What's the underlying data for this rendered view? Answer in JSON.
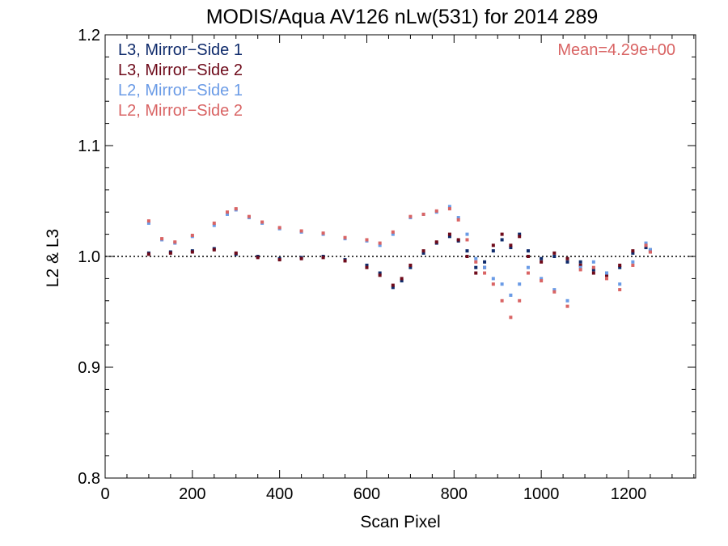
{
  "chart_data": {
    "type": "scatter",
    "title": "MODIS/Aqua AV126 nLw(531) for 2014 289",
    "xlabel": "Scan Pixel",
    "ylabel": "L2 & L3",
    "xlim": [
      0,
      1354
    ],
    "ylim": [
      0.8,
      1.2
    ],
    "x_ticks_major": [
      0,
      200,
      400,
      600,
      800,
      1000,
      1200
    ],
    "x_tick_labels": [
      "0",
      "200",
      "400",
      "600",
      "800",
      "1000",
      "1200"
    ],
    "y_ticks_major": [
      0.8,
      0.9,
      1.0,
      1.1,
      1.2
    ],
    "y_tick_labels": [
      "0.8",
      "0.9",
      "1.0",
      "1.1",
      "1.2"
    ],
    "reference_line": 1.0,
    "annotation": "Mean=4.29e+00",
    "annotation_color": "#d96464",
    "legend_position": "top-left",
    "series": [
      {
        "name": "L3, Mirror−Side 1",
        "color": "#0f2b6b",
        "x": [
          100,
          150,
          200,
          250,
          300,
          350,
          400,
          450,
          500,
          550,
          600,
          630,
          660,
          680,
          700,
          730,
          760,
          790,
          810,
          830,
          850,
          870,
          890,
          910,
          930,
          950,
          970,
          1000,
          1030,
          1060,
          1090,
          1120,
          1150,
          1180,
          1210,
          1240,
          1250
        ],
        "y": [
          1.003,
          1.004,
          1.005,
          1.007,
          1.002,
          1.0,
          0.998,
          0.999,
          1.0,
          0.997,
          0.992,
          0.985,
          0.972,
          0.978,
          0.99,
          1.003,
          1.012,
          1.018,
          1.014,
          1.005,
          0.99,
          0.995,
          1.005,
          1.015,
          1.008,
          1.02,
          1.005,
          0.998,
          1.0,
          0.995,
          0.995,
          0.988,
          0.985,
          0.99,
          1.003,
          1.008,
          1.006
        ]
      },
      {
        "name": "L3, Mirror−Side 2",
        "color": "#6e0a1a",
        "x": [
          100,
          150,
          200,
          250,
          300,
          350,
          400,
          450,
          500,
          550,
          600,
          630,
          660,
          680,
          700,
          730,
          760,
          790,
          810,
          830,
          850,
          870,
          890,
          910,
          930,
          950,
          970,
          1000,
          1030,
          1060,
          1090,
          1120,
          1150,
          1180,
          1210,
          1240,
          1250
        ],
        "y": [
          1.002,
          1.003,
          1.004,
          1.006,
          1.003,
          0.999,
          0.997,
          0.998,
          0.999,
          0.996,
          0.99,
          0.983,
          0.974,
          0.98,
          0.992,
          1.005,
          1.013,
          1.02,
          1.015,
          1.0,
          0.985,
          0.99,
          1.01,
          1.02,
          1.01,
          1.018,
          1.0,
          0.995,
          1.003,
          0.998,
          0.992,
          0.985,
          0.983,
          0.992,
          1.005,
          1.01,
          1.004
        ]
      },
      {
        "name": "L2, Mirror−Side 1",
        "color": "#6a9be6",
        "x": [
          100,
          130,
          160,
          200,
          250,
          280,
          300,
          330,
          360,
          400,
          450,
          500,
          550,
          600,
          630,
          660,
          700,
          730,
          760,
          790,
          810,
          830,
          850,
          870,
          890,
          910,
          930,
          950,
          970,
          1000,
          1030,
          1060,
          1090,
          1120,
          1150,
          1180,
          1210,
          1240,
          1250
        ],
        "y": [
          1.03,
          1.015,
          1.012,
          1.018,
          1.028,
          1.038,
          1.042,
          1.035,
          1.03,
          1.025,
          1.022,
          1.02,
          1.016,
          1.014,
          1.01,
          1.02,
          1.035,
          1.038,
          1.04,
          1.045,
          1.035,
          1.02,
          0.998,
          0.99,
          0.98,
          0.975,
          0.965,
          0.975,
          0.99,
          0.98,
          0.97,
          0.96,
          0.99,
          0.995,
          0.985,
          0.975,
          0.995,
          1.012,
          1.006
        ]
      },
      {
        "name": "L2, Mirror−Side 2",
        "color": "#d96464",
        "x": [
          100,
          130,
          160,
          200,
          250,
          280,
          300,
          330,
          360,
          400,
          450,
          500,
          550,
          600,
          630,
          660,
          700,
          730,
          760,
          790,
          810,
          830,
          850,
          870,
          890,
          910,
          930,
          950,
          970,
          1000,
          1030,
          1060,
          1090,
          1120,
          1150,
          1180,
          1210,
          1240,
          1250
        ],
        "y": [
          1.032,
          1.016,
          1.013,
          1.019,
          1.03,
          1.04,
          1.043,
          1.036,
          1.031,
          1.026,
          1.023,
          1.021,
          1.017,
          1.015,
          1.012,
          1.022,
          1.036,
          1.038,
          1.041,
          1.043,
          1.033,
          1.015,
          0.995,
          0.985,
          0.975,
          0.96,
          0.945,
          0.96,
          0.985,
          0.978,
          0.968,
          0.955,
          0.988,
          0.99,
          0.98,
          0.97,
          0.992,
          1.01,
          1.004
        ]
      }
    ]
  }
}
